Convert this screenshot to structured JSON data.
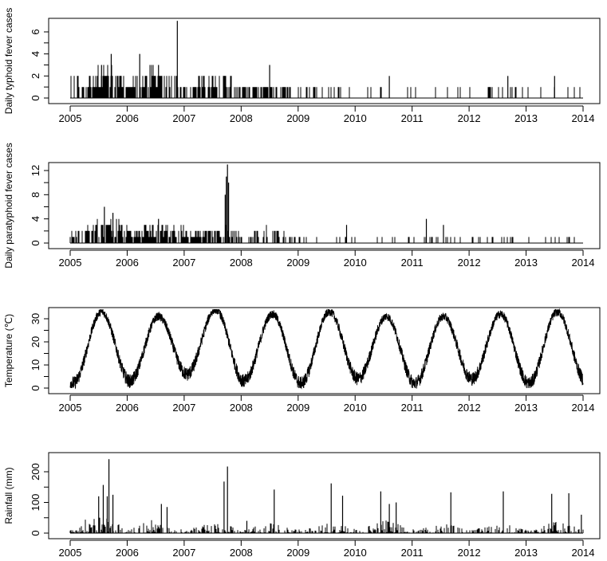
{
  "colors": {
    "line": "#000000",
    "background": "#ffffff"
  },
  "chart_data": [
    {
      "type": "line",
      "style": "histogram-spikes",
      "ylabel": "Daily typhoid fever cases",
      "x_ticks": [
        "2005",
        "2006",
        "2007",
        "2008",
        "2009",
        "2010",
        "2011",
        "2012",
        "2013",
        "2014"
      ],
      "xlim": [
        2005,
        2014
      ],
      "ylim": [
        0,
        7
      ],
      "y_ticks": [
        0,
        2,
        4,
        6
      ],
      "y_minor_ticks": [
        1,
        3,
        5
      ],
      "peaks": [
        {
          "x": 2005.55,
          "y": 3
        },
        {
          "x": 2005.72,
          "y": 4
        },
        {
          "x": 2006.22,
          "y": 4
        },
        {
          "x": 2006.55,
          "y": 3
        },
        {
          "x": 2006.88,
          "y": 7
        },
        {
          "x": 2008.5,
          "y": 3
        },
        {
          "x": 2010.6,
          "y": 2
        },
        {
          "x": 2012.68,
          "y": 2
        },
        {
          "x": 2013.5,
          "y": 2
        }
      ],
      "envelope": [
        [
          2005.0,
          2
        ],
        [
          2005.4,
          2
        ],
        [
          2005.5,
          3
        ],
        [
          2005.8,
          3
        ],
        [
          2006.0,
          1
        ],
        [
          2006.2,
          3
        ],
        [
          2006.7,
          3
        ],
        [
          2006.85,
          2
        ],
        [
          2007.0,
          1
        ],
        [
          2007.3,
          2
        ],
        [
          2007.8,
          2
        ],
        [
          2008.0,
          1
        ],
        [
          2009.0,
          1
        ],
        [
          2014.0,
          1
        ]
      ],
      "density": [
        [
          2005.0,
          0.6
        ],
        [
          2005.4,
          0.85
        ],
        [
          2006.0,
          0.7
        ],
        [
          2006.5,
          0.9
        ],
        [
          2007.0,
          0.55
        ],
        [
          2007.5,
          0.75
        ],
        [
          2008.0,
          0.5
        ],
        [
          2008.5,
          0.6
        ],
        [
          2009.0,
          0.25
        ],
        [
          2010.0,
          0.15
        ],
        [
          2011.0,
          0.1
        ],
        [
          2014.0,
          0.08
        ]
      ]
    },
    {
      "type": "line",
      "style": "histogram-spikes",
      "ylabel": "Daily paratyphoid fever cases",
      "x_ticks": [
        "2005",
        "2006",
        "2007",
        "2008",
        "2009",
        "2010",
        "2011",
        "2012",
        "2013",
        "2014"
      ],
      "xlim": [
        2005,
        2014
      ],
      "ylim": [
        0,
        13
      ],
      "y_ticks": [
        0,
        4,
        8,
        12
      ],
      "y_minor_ticks": [
        2,
        6,
        10
      ],
      "peaks": [
        {
          "x": 2005.6,
          "y": 6
        },
        {
          "x": 2005.75,
          "y": 5
        },
        {
          "x": 2006.55,
          "y": 4
        },
        {
          "x": 2007.72,
          "y": 8
        },
        {
          "x": 2007.74,
          "y": 11
        },
        {
          "x": 2007.76,
          "y": 13
        },
        {
          "x": 2007.78,
          "y": 10
        },
        {
          "x": 2009.85,
          "y": 3
        },
        {
          "x": 2011.25,
          "y": 4
        },
        {
          "x": 2011.55,
          "y": 3
        }
      ],
      "envelope": [
        [
          2005.0,
          2
        ],
        [
          2005.4,
          3
        ],
        [
          2005.5,
          5
        ],
        [
          2005.9,
          4
        ],
        [
          2006.1,
          2
        ],
        [
          2006.3,
          3
        ],
        [
          2006.9,
          3
        ],
        [
          2007.1,
          2
        ],
        [
          2007.7,
          3
        ],
        [
          2007.8,
          2
        ],
        [
          2008.3,
          2
        ],
        [
          2008.5,
          3
        ],
        [
          2008.7,
          2
        ],
        [
          2009.0,
          1
        ],
        [
          2014.0,
          1
        ]
      ],
      "density": [
        [
          2005.0,
          0.7
        ],
        [
          2006.0,
          0.85
        ],
        [
          2007.0,
          0.85
        ],
        [
          2007.8,
          0.7
        ],
        [
          2008.0,
          0.35
        ],
        [
          2008.5,
          0.5
        ],
        [
          2009.0,
          0.25
        ],
        [
          2010.0,
          0.15
        ],
        [
          2011.0,
          0.15
        ],
        [
          2014.0,
          0.08
        ]
      ]
    },
    {
      "type": "line",
      "style": "noisy-seasonal",
      "ylabel": "Temperature (℃)",
      "x_ticks": [
        "2005",
        "2006",
        "2007",
        "2008",
        "2009",
        "2010",
        "2011",
        "2012",
        "2013",
        "2014"
      ],
      "xlim": [
        2005,
        2014
      ],
      "ylim": [
        0,
        33
      ],
      "y_ticks": [
        0,
        10,
        20,
        30
      ],
      "y_minor_ticks": [
        5,
        15,
        25
      ],
      "annual_max": [
        33,
        31,
        34,
        32,
        33,
        31,
        31,
        32,
        33
      ],
      "annual_min": [
        0,
        1,
        4,
        1,
        0,
        2,
        0,
        2,
        0,
        1
      ],
      "noise_amplitude": 6
    },
    {
      "type": "line",
      "style": "histogram-spikes",
      "ylabel": "Rainfall (mm)",
      "x_ticks": [
        "2005",
        "2006",
        "2007",
        "2008",
        "2009",
        "2010",
        "2011",
        "2012",
        "2013",
        "2014"
      ],
      "xlim": [
        2005,
        2014
      ],
      "ylim": [
        0,
        240
      ],
      "y_ticks": [
        0,
        100,
        200
      ],
      "y_minor_ticks": [
        50,
        150
      ],
      "peaks": [
        {
          "x": 2005.5,
          "y": 120
        },
        {
          "x": 2005.58,
          "y": 157
        },
        {
          "x": 2005.65,
          "y": 120
        },
        {
          "x": 2005.68,
          "y": 241
        },
        {
          "x": 2005.75,
          "y": 125
        },
        {
          "x": 2006.6,
          "y": 95
        },
        {
          "x": 2006.7,
          "y": 85
        },
        {
          "x": 2007.7,
          "y": 168
        },
        {
          "x": 2007.76,
          "y": 217
        },
        {
          "x": 2008.1,
          "y": 40
        },
        {
          "x": 2008.58,
          "y": 142
        },
        {
          "x": 2009.58,
          "y": 162
        },
        {
          "x": 2009.78,
          "y": 122
        },
        {
          "x": 2010.45,
          "y": 136
        },
        {
          "x": 2010.6,
          "y": 95
        },
        {
          "x": 2010.72,
          "y": 100
        },
        {
          "x": 2011.68,
          "y": 133
        },
        {
          "x": 2012.6,
          "y": 136
        },
        {
          "x": 2013.45,
          "y": 128
        },
        {
          "x": 2013.75,
          "y": 130
        },
        {
          "x": 2013.97,
          "y": 60
        }
      ],
      "envelope": [
        [
          2005.0,
          15
        ],
        [
          2005.4,
          60
        ],
        [
          2005.8,
          40
        ],
        [
          2006.0,
          10
        ],
        [
          2006.4,
          50
        ],
        [
          2006.8,
          30
        ],
        [
          2007.0,
          8
        ],
        [
          2007.5,
          35
        ],
        [
          2007.9,
          20
        ],
        [
          2008.0,
          8
        ],
        [
          2008.5,
          35
        ],
        [
          2008.9,
          15
        ],
        [
          2009.1,
          10
        ],
        [
          2009.5,
          40
        ],
        [
          2009.9,
          20
        ],
        [
          2010.1,
          10
        ],
        [
          2010.5,
          50
        ],
        [
          2010.9,
          20
        ],
        [
          2011.1,
          8
        ],
        [
          2011.5,
          40
        ],
        [
          2011.9,
          15
        ],
        [
          2012.1,
          10
        ],
        [
          2012.5,
          45
        ],
        [
          2012.9,
          15
        ],
        [
          2013.1,
          8
        ],
        [
          2013.5,
          40
        ],
        [
          2014.0,
          15
        ]
      ],
      "density": [
        [
          2005.0,
          0.9
        ],
        [
          2014.0,
          0.9
        ]
      ]
    }
  ]
}
